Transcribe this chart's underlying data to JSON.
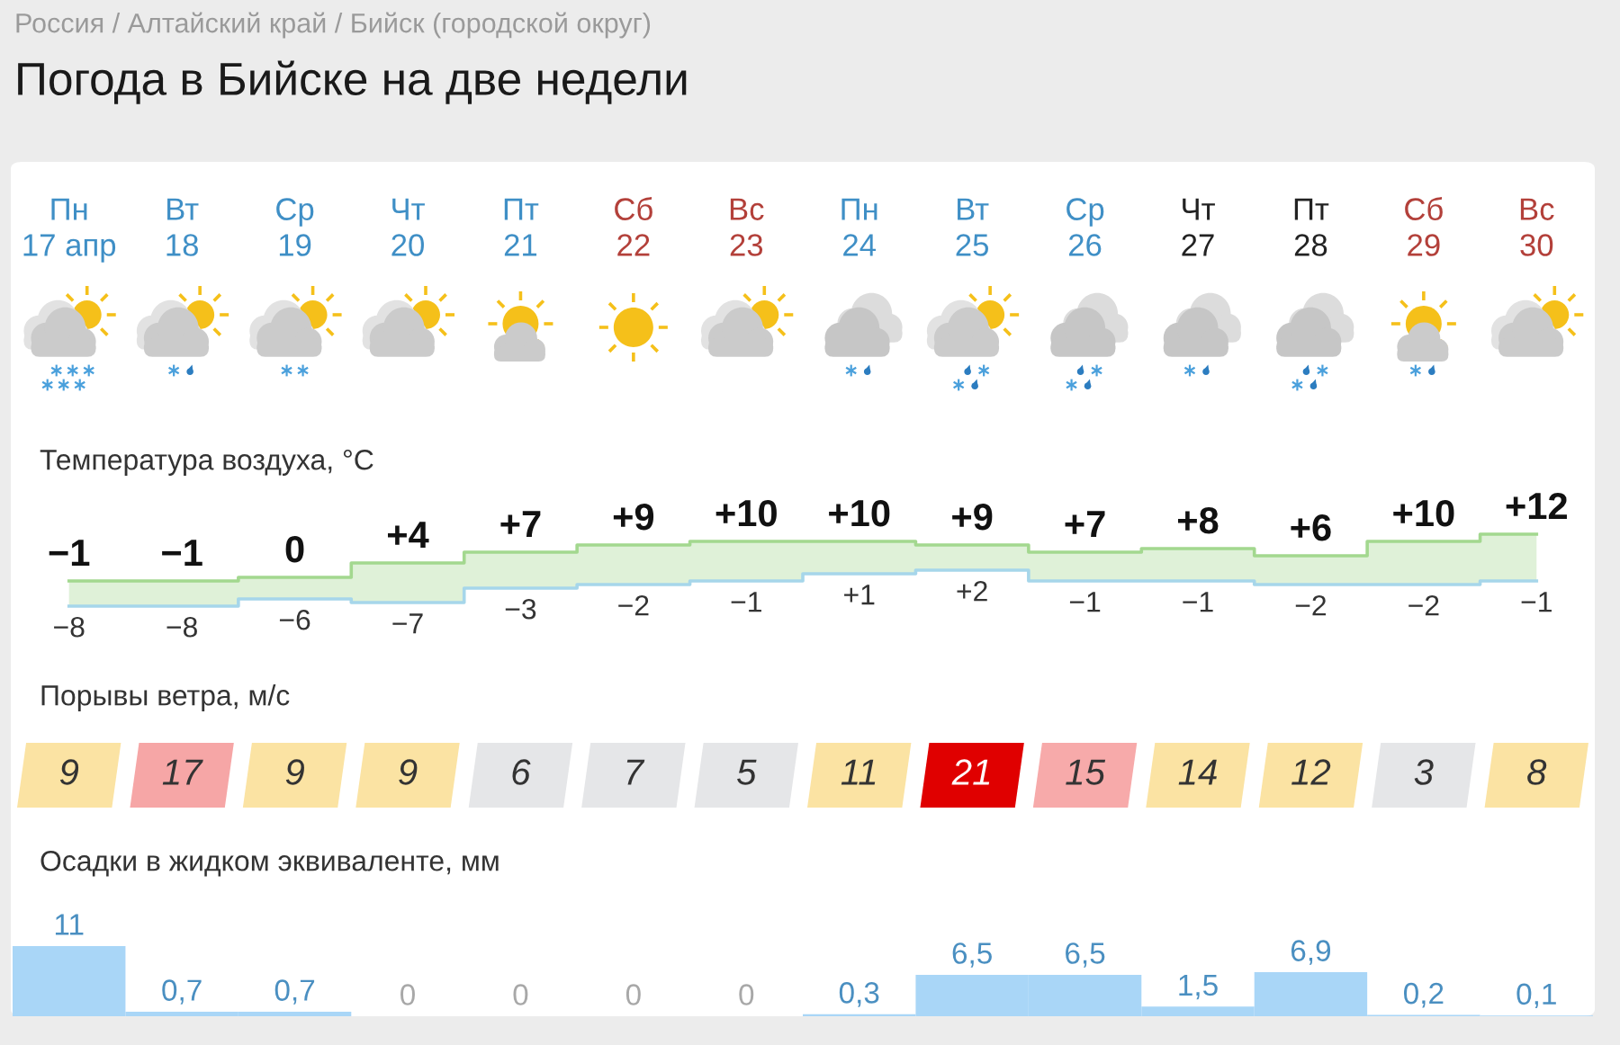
{
  "chart_data": [
    {
      "type": "other",
      "title": "Погода в Бийске на две недели",
      "subtitle": "Россия / Алтайский край / Бийск (городской округ)"
    },
    {
      "type": "step",
      "title": "Температура воздуха, °C",
      "categories": [
        "Пн\n17 апр",
        "Вт\n18",
        "Ср\n19",
        "Чт\n20",
        "Пт\n21",
        "Сб\n22",
        "Вс\n23",
        "Пн\n24",
        "Вт\n25",
        "Ср\n26",
        "Чт\n27",
        "Пт\n28",
        "Сб\n29",
        "Вс\n30"
      ],
      "tick_labels": "x",
      "series": [
        {
          "values": [
            -1,
            -1,
            0,
            4,
            7,
            9,
            10,
            10,
            9,
            7,
            8,
            6,
            10,
            12
          ],
          "value_labels": [
            "−1",
            "−1",
            "0",
            "+4",
            "+7",
            "+9",
            "+10",
            "+10",
            "+9",
            "+7",
            "+8",
            "+6",
            "+10",
            "+12"
          ],
          "color": "#a3d88f",
          "lower": [
            -8,
            -8,
            -6,
            -7,
            -3,
            -2,
            -1,
            1,
            2,
            -1,
            -1,
            -2,
            -2,
            -1
          ],
          "upper": [
            -1,
            -1,
            0,
            4,
            7,
            9,
            10,
            10,
            9,
            7,
            8,
            6,
            10,
            12
          ]
        },
        {
          "values": [
            -8,
            -8,
            -6,
            -7,
            -3,
            -2,
            -1,
            1,
            2,
            -1,
            -1,
            -2,
            -2,
            -1
          ],
          "value_labels": [
            "−8",
            "−8",
            "−6",
            "−7",
            "−3",
            "−2",
            "−1",
            "+1",
            "+2",
            "−1",
            "−1",
            "−2",
            "−2",
            "−1"
          ],
          "color": "#a6d6ea"
        }
      ]
    },
    {
      "type": "heatmap",
      "title": "Порывы ветра, м/с",
      "categories": [
        null,
        null,
        null,
        null,
        null,
        null,
        null,
        null,
        null,
        null,
        null,
        null,
        null,
        null
      ],
      "y_categories": [
        null
      ],
      "cells": [
        [
          9,
          17,
          9,
          9,
          6,
          7,
          5,
          11,
          21,
          15,
          14,
          12,
          3,
          8
        ]
      ],
      "colors": [
        "#fbe3a3",
        "#f6a6a6",
        "#fbe3a3",
        "#fbe3a3",
        "#e5e6e8",
        "#e5e6e8",
        "#e5e6e8",
        "#fbe3a3",
        "#e00000",
        "#f7aaaa",
        "#fbe3a3",
        "#fbe3a3",
        "#e5e6e8",
        "#fbe3a3"
      ],
      "data_labels": true
    },
    {
      "type": "bar",
      "title": "Осадки в жидком эквиваленте, мм",
      "categories": [
        null,
        null,
        null,
        null,
        null,
        null,
        null,
        null,
        null,
        null,
        null,
        null,
        null,
        null
      ],
      "values": [
        11,
        0.7,
        0.7,
        0,
        0,
        0,
        0,
        0.3,
        6.5,
        6.5,
        1.5,
        6.9,
        0.2,
        0.1
      ],
      "value_labels": [
        "11",
        "0,7",
        "0,7",
        "0",
        "0",
        "0",
        "0",
        "0,3",
        "6,5",
        "6,5",
        "1,5",
        "6,9",
        "0,2",
        "0,1"
      ],
      "color": "#a9d6f7",
      "tick_labels": false
    }
  ]
}
